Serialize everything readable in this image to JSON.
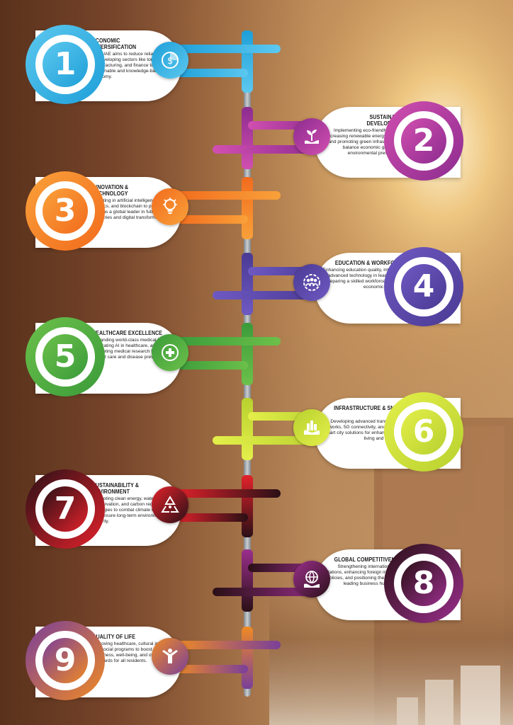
{
  "steps": [
    {
      "number": "1",
      "title": "ECONOMIC DIVERSIFICATION",
      "description": "The UAE aims to reduce reliance on oil by developing sectors like tourism, manufacturing, and finance to build a sustainable and knowledge-based economy.",
      "icon": "dollar-chart-icon",
      "color": "#1e9fd8",
      "color2": "#5cc8ef"
    },
    {
      "number": "2",
      "title": "SUSTAINABLE DEVELOPMENT",
      "description": "Implementing eco-friendly policies, increasing renewable energy projects, and promoting green infrastructure to balance economic growth with environmental preservation.",
      "icon": "plant-hand-icon",
      "color": "#8d2c8f",
      "color2": "#d14fb0"
    },
    {
      "number": "3",
      "title": "INNOVATION & TECHNOLOGY",
      "description": "Investing in artificial intelligence, robotics, and blockchain to position the UAE as a global leader in future industries and digital transformation.",
      "icon": "lightbulb-icon",
      "color": "#f26b1d",
      "color2": "#f9a13a"
    },
    {
      "number": "4",
      "title": "EDUCATION & WORKFORCE",
      "description": "Enhancing education quality, integrating advanced technology in learning, and preparing a skilled workforce for future economic demands.",
      "icon": "team-gear-icon",
      "color": "#4a3a93",
      "color2": "#6e59c2"
    },
    {
      "number": "5",
      "title": "HEALTHCARE EXCELLENCE",
      "description": "Expanding world-class medical facilities, integrating AI in healthcare, and promoting medical research for better patient care and disease prevention.",
      "icon": "healthcare-hands-icon",
      "color": "#3a9b3a",
      "color2": "#6cc04a"
    },
    {
      "number": "6",
      "title": "INFRASTRUCTURE & SMART CITIES",
      "description": "Developing advanced transportation networks, 5G connectivity, and AI-driven smart city solutions for enhanced urban living and efficiency.",
      "icon": "smart-city-hand-icon",
      "color": "#b8d12f",
      "color2": "#e4ef4a"
    },
    {
      "number": "7",
      "title": "SUSTAINABILITY & ENVIRONMENT",
      "description": "Promoting clean energy, water conservation, and carbon reduction strategies to combat climate change and ensure long-term environmental security.",
      "icon": "recycle-icon",
      "color": "#e3222b",
      "color2": "#2a1016"
    },
    {
      "number": "8",
      "title": "GLOBAL COMPETITIVENESS",
      "description": "Strengthening international trade relations, enhancing foreign investment policies, and positioning the UAE as a leading business hub globally.",
      "icon": "globe-hand-icon",
      "color": "#9a2f8c",
      "color2": "#2a1016"
    },
    {
      "number": "9",
      "title": "QUALITY OF LIFE",
      "description": "Improving healthcare, cultural initiatives, and social programs to boost happiness, well-being, and overall living standards for all residents.",
      "icon": "happy-person-icon",
      "color": "#f08a24",
      "color2": "#7a3f9a"
    }
  ]
}
